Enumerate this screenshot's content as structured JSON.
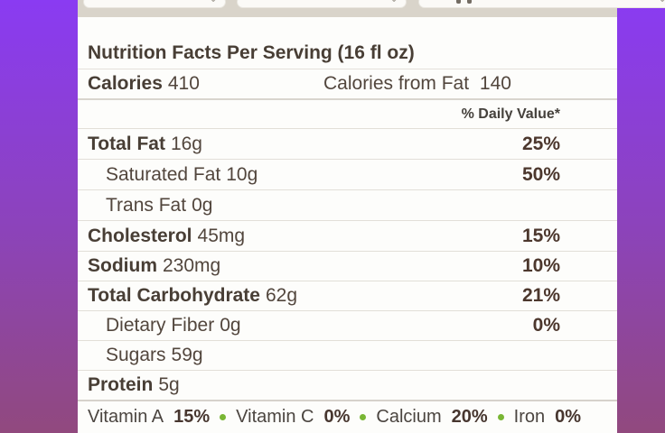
{
  "toolbar": {
    "chevron_glyph": "⌄",
    "dropdowns": [
      {
        "name": "dropdown-left"
      },
      {
        "name": "dropdown-middle"
      },
      {
        "name": "dropdown-right"
      }
    ]
  },
  "label": {
    "title": "Nutrition Facts Per Serving (16 fl oz)",
    "calories": {
      "label": "Calories",
      "value": "410"
    },
    "calories_from_fat": {
      "label": "Calories from Fat",
      "value": "140"
    },
    "daily_value_header": "% Daily Value*",
    "rows": [
      {
        "label": "Total Fat",
        "amount": "16g",
        "dv": "25%"
      },
      {
        "label": "Saturated Fat",
        "amount": "10g",
        "dv": "50%"
      },
      {
        "label": "Trans Fat",
        "amount": "0g",
        "dv": ""
      },
      {
        "label": "Cholesterol",
        "amount": "45mg",
        "dv": "15%"
      },
      {
        "label": "Sodium",
        "amount": "230mg",
        "dv": "10%"
      },
      {
        "label": "Total Carbohydrate",
        "amount": "62g",
        "dv": "21%"
      },
      {
        "label": "Dietary Fiber",
        "amount": "0g",
        "dv": "0%"
      },
      {
        "label": "Sugars",
        "amount": "59g",
        "dv": ""
      },
      {
        "label": "Protein",
        "amount": "5g",
        "dv": ""
      }
    ],
    "vitamins": [
      {
        "name": "Vitamin A",
        "value": "15%"
      },
      {
        "name": "Vitamin C",
        "value": "0%"
      },
      {
        "name": "Calcium",
        "value": "20%"
      },
      {
        "name": "Iron",
        "value": "0%"
      }
    ]
  },
  "colors": {
    "background_top": "#8a3bf2",
    "background_bottom": "#91497e",
    "toolbar_beige": "#d9d4ca",
    "card_white": "#fdfdfb",
    "text_dark": "#483e35",
    "green_bullet": "#79b634"
  }
}
